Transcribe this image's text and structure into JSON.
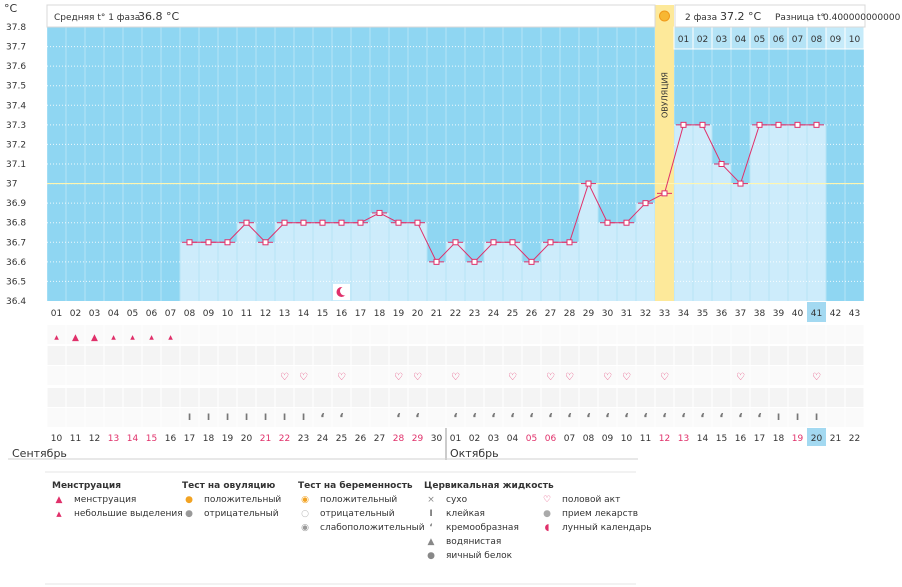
{
  "header": {
    "phase1_label": "Средняя t° 1 фаза",
    "phase1_value": "36.8 °C",
    "phase2_label": "2 фаза",
    "phase2_value": "37.2 °C",
    "diff_label": "Разница t°",
    "diff_value": "0.400000000000"
  },
  "y_unit": "°C",
  "ovulation_label": "ОВУЛЯЦИЯ",
  "month_labels": [
    "Сентябрь",
    "Октябрь"
  ],
  "colors": {
    "sky": "#8fd6f2",
    "column": "#cdecfb",
    "line": "#e0306a",
    "ovulation": "#fde99a",
    "weekend": "#e0306a",
    "highlight": "#a3d9f1"
  },
  "chart_data": {
    "type": "line",
    "ylim": [
      36.4,
      37.8
    ],
    "yticks": [
      "36.4",
      "36.5",
      "36.6",
      "36.7",
      "36.8",
      "36.9",
      "37",
      "37.1",
      "37.2",
      "37.3",
      "37.4",
      "37.5",
      "37.6",
      "37.7",
      "37.8"
    ],
    "cover_line": 37.0,
    "cycle_days": [
      "01",
      "02",
      "03",
      "04",
      "05",
      "06",
      "07",
      "08",
      "09",
      "10",
      "11",
      "12",
      "13",
      "14",
      "15",
      "16",
      "17",
      "18",
      "19",
      "20",
      "21",
      "22",
      "23",
      "24",
      "25",
      "26",
      "27",
      "28",
      "29",
      "30",
      "31",
      "32",
      "33",
      "34",
      "35",
      "36",
      "37",
      "38",
      "39",
      "40",
      "41",
      "42",
      "43"
    ],
    "calendar_dates": [
      "10",
      "11",
      "12",
      "13",
      "14",
      "15",
      "16",
      "17",
      "18",
      "19",
      "20",
      "21",
      "22",
      "23",
      "24",
      "25",
      "26",
      "27",
      "28",
      "29",
      "30",
      "01",
      "02",
      "03",
      "04",
      "05",
      "06",
      "07",
      "08",
      "09",
      "10",
      "11",
      "12",
      "13",
      "14",
      "15",
      "16",
      "17",
      "18",
      "19",
      "20",
      "21",
      "22"
    ],
    "weekend_indices": [
      3,
      4,
      5,
      11,
      12,
      18,
      19,
      25,
      26,
      32,
      33,
      39
    ],
    "today_index": 40,
    "ovulation_day_index": 32,
    "phase2_day_labels": [
      "01",
      "02",
      "03",
      "04",
      "05",
      "06",
      "07",
      "08",
      "09",
      "10"
    ],
    "series": [
      {
        "values": [
          null,
          null,
          null,
          null,
          null,
          null,
          null,
          36.7,
          36.7,
          36.7,
          36.8,
          36.7,
          36.8,
          36.8,
          36.8,
          36.8,
          36.8,
          36.85,
          36.8,
          36.8,
          36.6,
          36.7,
          36.6,
          36.7,
          36.7,
          36.6,
          36.7,
          36.7,
          37.0,
          36.8,
          36.8,
          36.9,
          36.95,
          37.3,
          37.3,
          37.1,
          37.0,
          37.3,
          37.3,
          37.3,
          37.3,
          null,
          null
        ]
      }
    ],
    "menstruation_heavy": [
      1,
      2
    ],
    "menstruation_light": [
      0,
      3,
      4,
      5,
      6
    ],
    "intercourse_days": [
      12,
      13,
      15,
      18,
      19,
      21,
      24,
      26,
      27,
      29,
      30,
      32,
      36,
      40
    ],
    "cervical_sticky": [
      7,
      8,
      9,
      10,
      11,
      12,
      13,
      38,
      39,
      40
    ],
    "cervical_creamy": [
      14,
      15,
      18,
      19,
      21,
      22,
      23,
      24,
      25,
      26,
      27,
      28,
      29,
      30,
      31,
      32,
      33,
      34,
      35,
      36,
      37
    ],
    "moon_day_index": 15
  },
  "legend": {
    "menstruation": {
      "title": "Менструация",
      "items": [
        {
          "icon": "menstruation-icon",
          "label": "менструация"
        },
        {
          "icon": "light-discharge-icon",
          "label": "небольшие выделения"
        }
      ]
    },
    "ovulation_test": {
      "title": "Тест на овуляцию",
      "items": [
        {
          "icon": "positive-test-icon",
          "label": "положительный"
        },
        {
          "icon": "negative-test-icon",
          "label": "отрицательный"
        }
      ]
    },
    "pregnancy_test": {
      "title": "Тест на беременность",
      "items": [
        {
          "icon": "positive-pregnancy-icon",
          "label": "положительный"
        },
        {
          "icon": "negative-pregnancy-icon",
          "label": "отрицательный"
        },
        {
          "icon": "weak-positive-icon",
          "label": "слабоположительный"
        }
      ]
    },
    "cervical": {
      "title": "Цервикальная жидкость",
      "items": [
        {
          "icon": "dry-icon",
          "label": "сухо"
        },
        {
          "icon": "sticky-icon",
          "label": "клейкая"
        },
        {
          "icon": "creamy-icon",
          "label": "кремообразная"
        },
        {
          "icon": "watery-icon",
          "label": "водянистая"
        },
        {
          "icon": "eggwhite-icon",
          "label": "яичный белок"
        }
      ]
    },
    "other": {
      "items": [
        {
          "icon": "heart-icon",
          "label": "половой акт"
        },
        {
          "icon": "pill-icon",
          "label": "прием лекарств"
        },
        {
          "icon": "moon-icon",
          "label": "лунный календарь"
        }
      ]
    }
  }
}
